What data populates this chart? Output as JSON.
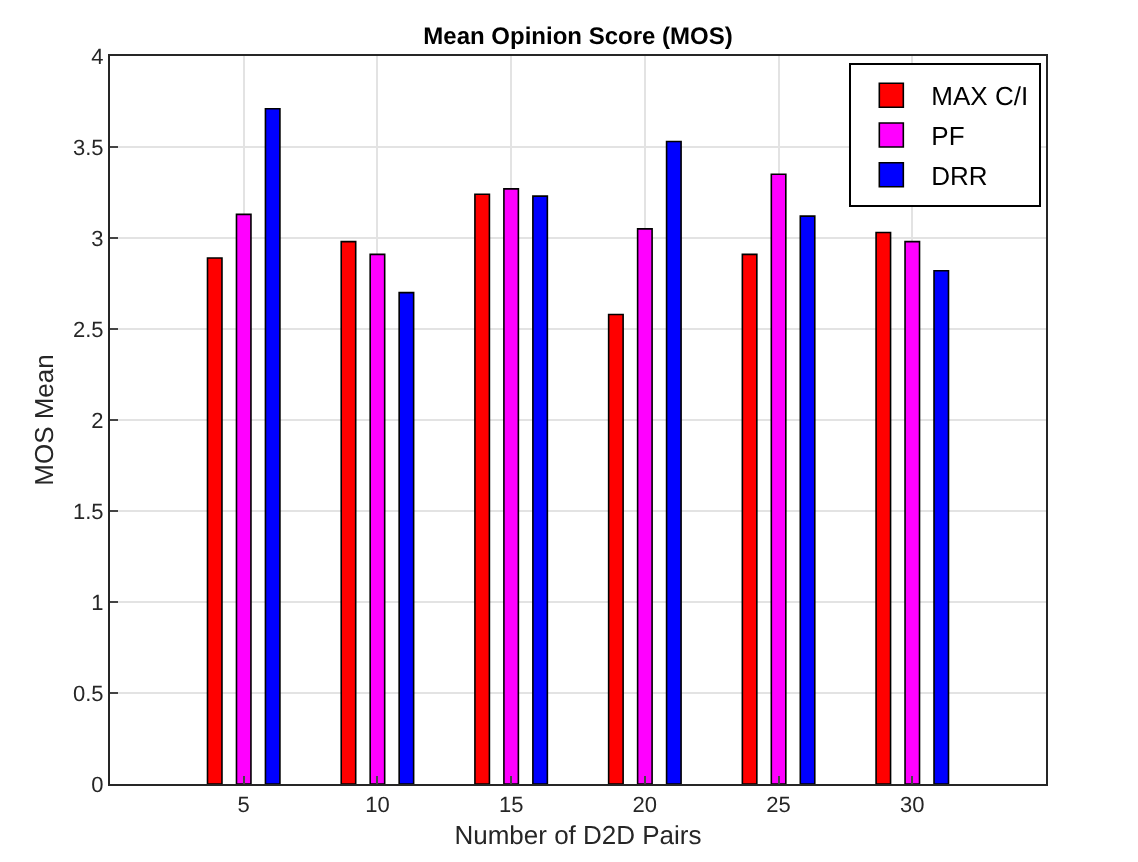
{
  "chart_data": {
    "type": "bar",
    "title": "Mean Opinion Score (MOS)",
    "xlabel": "Number of D2D Pairs",
    "ylabel": "MOS Mean",
    "categories": [
      "5",
      "10",
      "15",
      "20",
      "25",
      "30"
    ],
    "series": [
      {
        "name": "MAX C/I",
        "color": "#ff0000",
        "values": [
          2.89,
          2.98,
          3.24,
          2.58,
          2.91,
          3.03
        ]
      },
      {
        "name": "PF",
        "color": "#ff00ff",
        "values": [
          3.13,
          2.91,
          3.27,
          3.05,
          3.35,
          2.98
        ]
      },
      {
        "name": "DRR",
        "color": "#0000ff",
        "values": [
          3.71,
          2.7,
          3.23,
          3.53,
          3.12,
          2.82
        ]
      }
    ],
    "ylim": [
      0,
      4
    ],
    "yticks": [
      0,
      0.5,
      1,
      1.5,
      2,
      2.5,
      3,
      3.5,
      4
    ],
    "grid": true,
    "legend": "top right"
  }
}
